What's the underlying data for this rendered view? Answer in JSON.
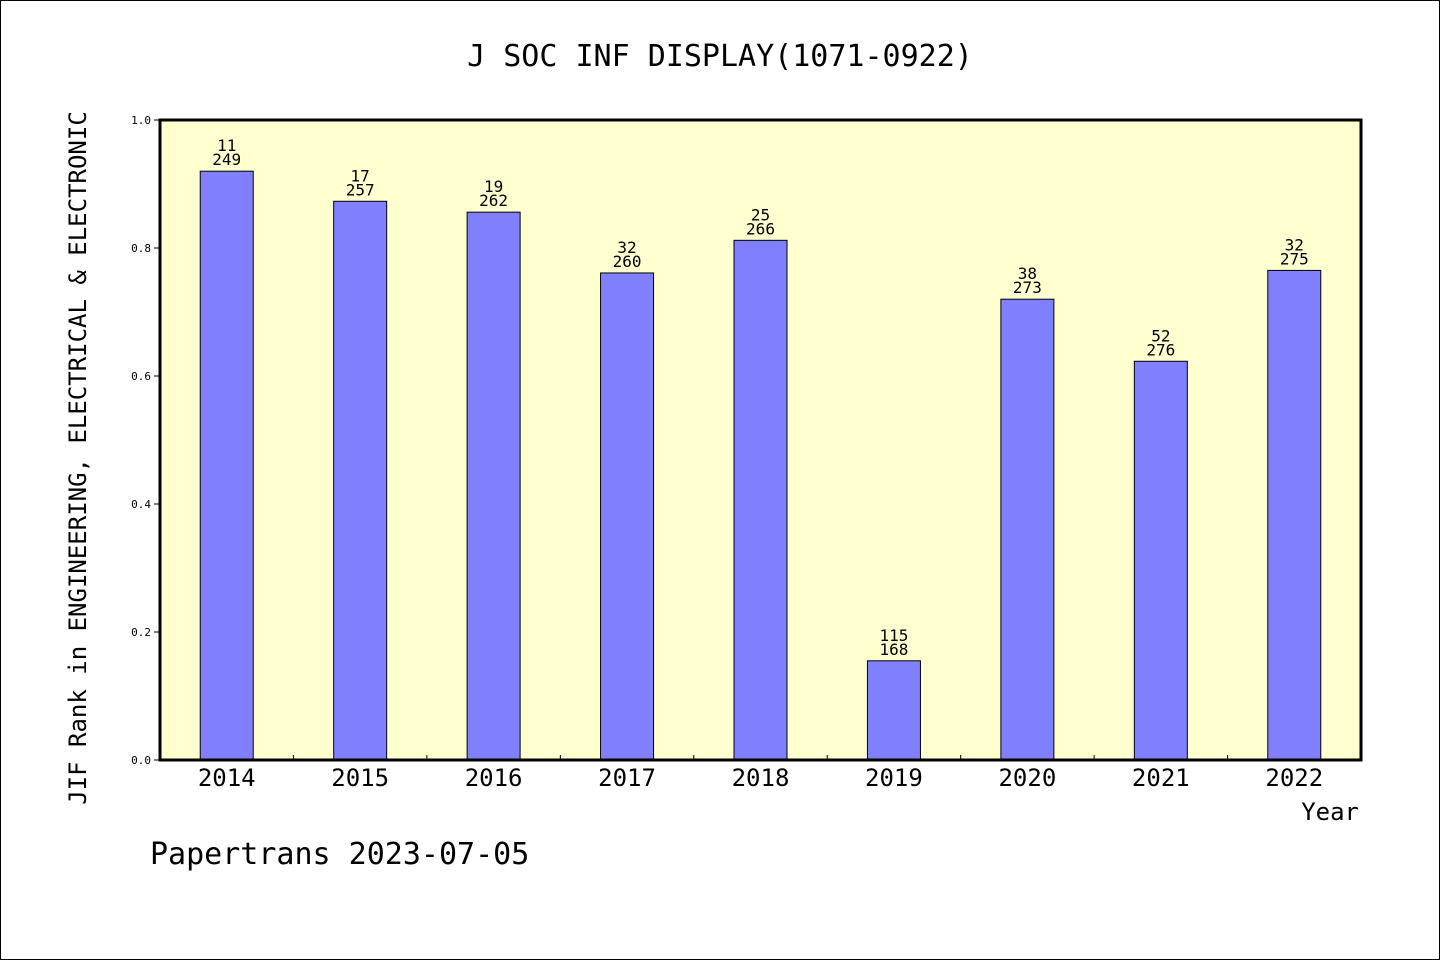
{
  "chart_data": {
    "type": "bar",
    "title": "J SOC INF DISPLAY(1071-0922)",
    "xlabel": "Year",
    "ylabel": "JIF Rank in ENGINEERING, ELECTRICAL & ELECTRONIC",
    "footer": "Papertrans 2023-07-05",
    "categories": [
      "2014",
      "2015",
      "2016",
      "2017",
      "2018",
      "2019",
      "2020",
      "2021",
      "2022"
    ],
    "values": [
      0.92,
      0.873,
      0.856,
      0.761,
      0.812,
      0.155,
      0.72,
      0.623,
      0.765
    ],
    "rank": [
      "11",
      "17",
      "19",
      "32",
      "25",
      "115",
      "38",
      "52",
      "32"
    ],
    "total": [
      "249",
      "257",
      "262",
      "260",
      "266",
      "168",
      "273",
      "276",
      "275"
    ],
    "ylim": [
      0,
      1.0
    ],
    "yticks": [
      "0.0",
      "0.2",
      "0.4",
      "0.6",
      "0.8",
      "1.0"
    ],
    "grid": false,
    "colors": {
      "bar": "#8080ff",
      "plot_bg": "#ffffd0",
      "axis": "#000000"
    }
  }
}
